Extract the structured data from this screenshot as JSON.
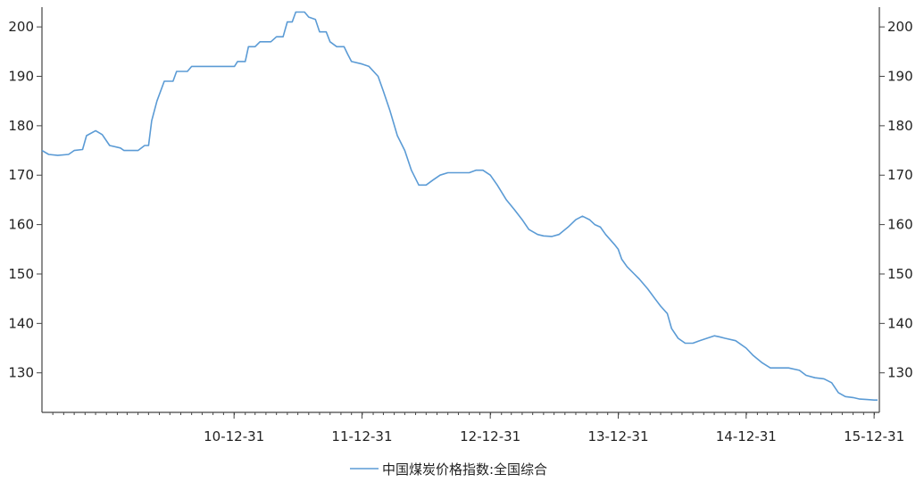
{
  "chart_data": {
    "type": "line",
    "title": "",
    "xlabel": "",
    "ylabel": "",
    "ylim": [
      122,
      204
    ],
    "xlim": [
      "2009-07-01",
      "2016-01-15"
    ],
    "y_ticks": [
      130,
      140,
      150,
      160,
      170,
      180,
      190,
      200
    ],
    "x_ticks": [
      {
        "date": "2010-12-31",
        "label": "10-12-31"
      },
      {
        "date": "2011-12-31",
        "label": "11-12-31"
      },
      {
        "date": "2012-12-31",
        "label": "12-12-31"
      },
      {
        "date": "2013-12-31",
        "label": "13-12-31"
      },
      {
        "date": "2014-12-31",
        "label": "14-12-31"
      },
      {
        "date": "2015-12-31",
        "label": "15-12-31"
      }
    ],
    "grid": false,
    "dual_y_axis": true,
    "legend_position": "bottom-center",
    "series": [
      {
        "name": "中国煤炭价格指数:全国综合",
        "color": "#5b9bd5",
        "points": [
          [
            "2009-07-01",
            175.0
          ],
          [
            "2009-07-20",
            174.2
          ],
          [
            "2009-08-15",
            174.0
          ],
          [
            "2009-09-15",
            174.2
          ],
          [
            "2009-10-01",
            175.0
          ],
          [
            "2009-10-25",
            175.2
          ],
          [
            "2009-11-05",
            178.0
          ],
          [
            "2009-12-01",
            179.0
          ],
          [
            "2009-12-20",
            178.2
          ],
          [
            "2010-01-10",
            176.0
          ],
          [
            "2010-02-10",
            175.5
          ],
          [
            "2010-02-20",
            175.0
          ],
          [
            "2010-04-01",
            175.0
          ],
          [
            "2010-04-20",
            176.0
          ],
          [
            "2010-05-01",
            176.0
          ],
          [
            "2010-05-10",
            181.0
          ],
          [
            "2010-05-25",
            185.0
          ],
          [
            "2010-06-15",
            189.0
          ],
          [
            "2010-07-10",
            189.0
          ],
          [
            "2010-07-20",
            191.0
          ],
          [
            "2010-08-20",
            191.0
          ],
          [
            "2010-09-01",
            192.0
          ],
          [
            "2010-12-15",
            192.0
          ],
          [
            "2011-01-01",
            192.0
          ],
          [
            "2011-01-10",
            193.0
          ],
          [
            "2011-02-01",
            193.0
          ],
          [
            "2011-02-10",
            196.0
          ],
          [
            "2011-03-01",
            196.0
          ],
          [
            "2011-03-15",
            197.0
          ],
          [
            "2011-04-15",
            197.0
          ],
          [
            "2011-05-01",
            198.0
          ],
          [
            "2011-05-20",
            198.0
          ],
          [
            "2011-06-01",
            201.0
          ],
          [
            "2011-06-15",
            201.0
          ],
          [
            "2011-06-25",
            203.0
          ],
          [
            "2011-07-20",
            203.0
          ],
          [
            "2011-08-01",
            202.0
          ],
          [
            "2011-08-20",
            201.5
          ],
          [
            "2011-09-01",
            199.0
          ],
          [
            "2011-09-20",
            199.0
          ],
          [
            "2011-10-01",
            197.0
          ],
          [
            "2011-10-20",
            196.0
          ],
          [
            "2011-11-10",
            196.0
          ],
          [
            "2011-11-20",
            194.5
          ],
          [
            "2011-12-01",
            193.0
          ],
          [
            "2011-12-31",
            192.5
          ],
          [
            "2012-01-20",
            192.0
          ],
          [
            "2012-02-15",
            190.0
          ],
          [
            "2012-03-01",
            187.0
          ],
          [
            "2012-03-20",
            183.0
          ],
          [
            "2012-04-10",
            178.0
          ],
          [
            "2012-05-01",
            175.0
          ],
          [
            "2012-05-20",
            171.0
          ],
          [
            "2012-06-10",
            168.0
          ],
          [
            "2012-07-01",
            168.0
          ],
          [
            "2012-07-20",
            169.0
          ],
          [
            "2012-08-10",
            170.0
          ],
          [
            "2012-09-01",
            170.5
          ],
          [
            "2012-10-01",
            170.5
          ],
          [
            "2012-11-01",
            170.5
          ],
          [
            "2012-11-20",
            171.0
          ],
          [
            "2012-12-10",
            171.0
          ],
          [
            "2012-12-31",
            170.0
          ],
          [
            "2013-01-20",
            168.0
          ],
          [
            "2013-02-15",
            165.0
          ],
          [
            "2013-03-10",
            163.0
          ],
          [
            "2013-04-01",
            161.0
          ],
          [
            "2013-04-20",
            159.0
          ],
          [
            "2013-05-15",
            158.0
          ],
          [
            "2013-06-01",
            157.7
          ],
          [
            "2013-06-25",
            157.6
          ],
          [
            "2013-07-15",
            158.0
          ],
          [
            "2013-08-10",
            159.5
          ],
          [
            "2013-09-01",
            161.0
          ],
          [
            "2013-09-20",
            161.7
          ],
          [
            "2013-10-10",
            161.0
          ],
          [
            "2013-10-25",
            160.0
          ],
          [
            "2013-11-10",
            159.5
          ],
          [
            "2013-11-25",
            158.0
          ],
          [
            "2013-12-20",
            156.0
          ],
          [
            "2013-12-31",
            155.0
          ],
          [
            "2014-01-10",
            153.0
          ],
          [
            "2014-01-25",
            151.5
          ],
          [
            "2014-02-15",
            150.0
          ],
          [
            "2014-03-01",
            149.0
          ],
          [
            "2014-03-25",
            147.0
          ],
          [
            "2014-04-15",
            145.0
          ],
          [
            "2014-05-01",
            143.5
          ],
          [
            "2014-05-20",
            142.0
          ],
          [
            "2014-06-01",
            139.0
          ],
          [
            "2014-06-20",
            137.0
          ],
          [
            "2014-07-10",
            136.0
          ],
          [
            "2014-08-01",
            136.0
          ],
          [
            "2014-08-20",
            136.5
          ],
          [
            "2014-09-10",
            137.0
          ],
          [
            "2014-10-01",
            137.5
          ],
          [
            "2014-10-15",
            137.3
          ],
          [
            "2014-11-01",
            137.0
          ],
          [
            "2014-12-01",
            136.5
          ],
          [
            "2014-12-31",
            135.0
          ],
          [
            "2015-01-20",
            133.5
          ],
          [
            "2015-02-15",
            132.0
          ],
          [
            "2015-03-10",
            131.0
          ],
          [
            "2015-04-01",
            131.0
          ],
          [
            "2015-05-01",
            131.0
          ],
          [
            "2015-06-01",
            130.5
          ],
          [
            "2015-06-20",
            129.5
          ],
          [
            "2015-07-15",
            129.0
          ],
          [
            "2015-08-10",
            128.8
          ],
          [
            "2015-09-01",
            128.0
          ],
          [
            "2015-09-20",
            126.0
          ],
          [
            "2015-10-10",
            125.2
          ],
          [
            "2015-11-01",
            125.0
          ],
          [
            "2015-11-20",
            124.7
          ],
          [
            "2015-12-10",
            124.6
          ],
          [
            "2015-12-31",
            124.5
          ],
          [
            "2016-01-10",
            124.5
          ]
        ]
      }
    ]
  }
}
